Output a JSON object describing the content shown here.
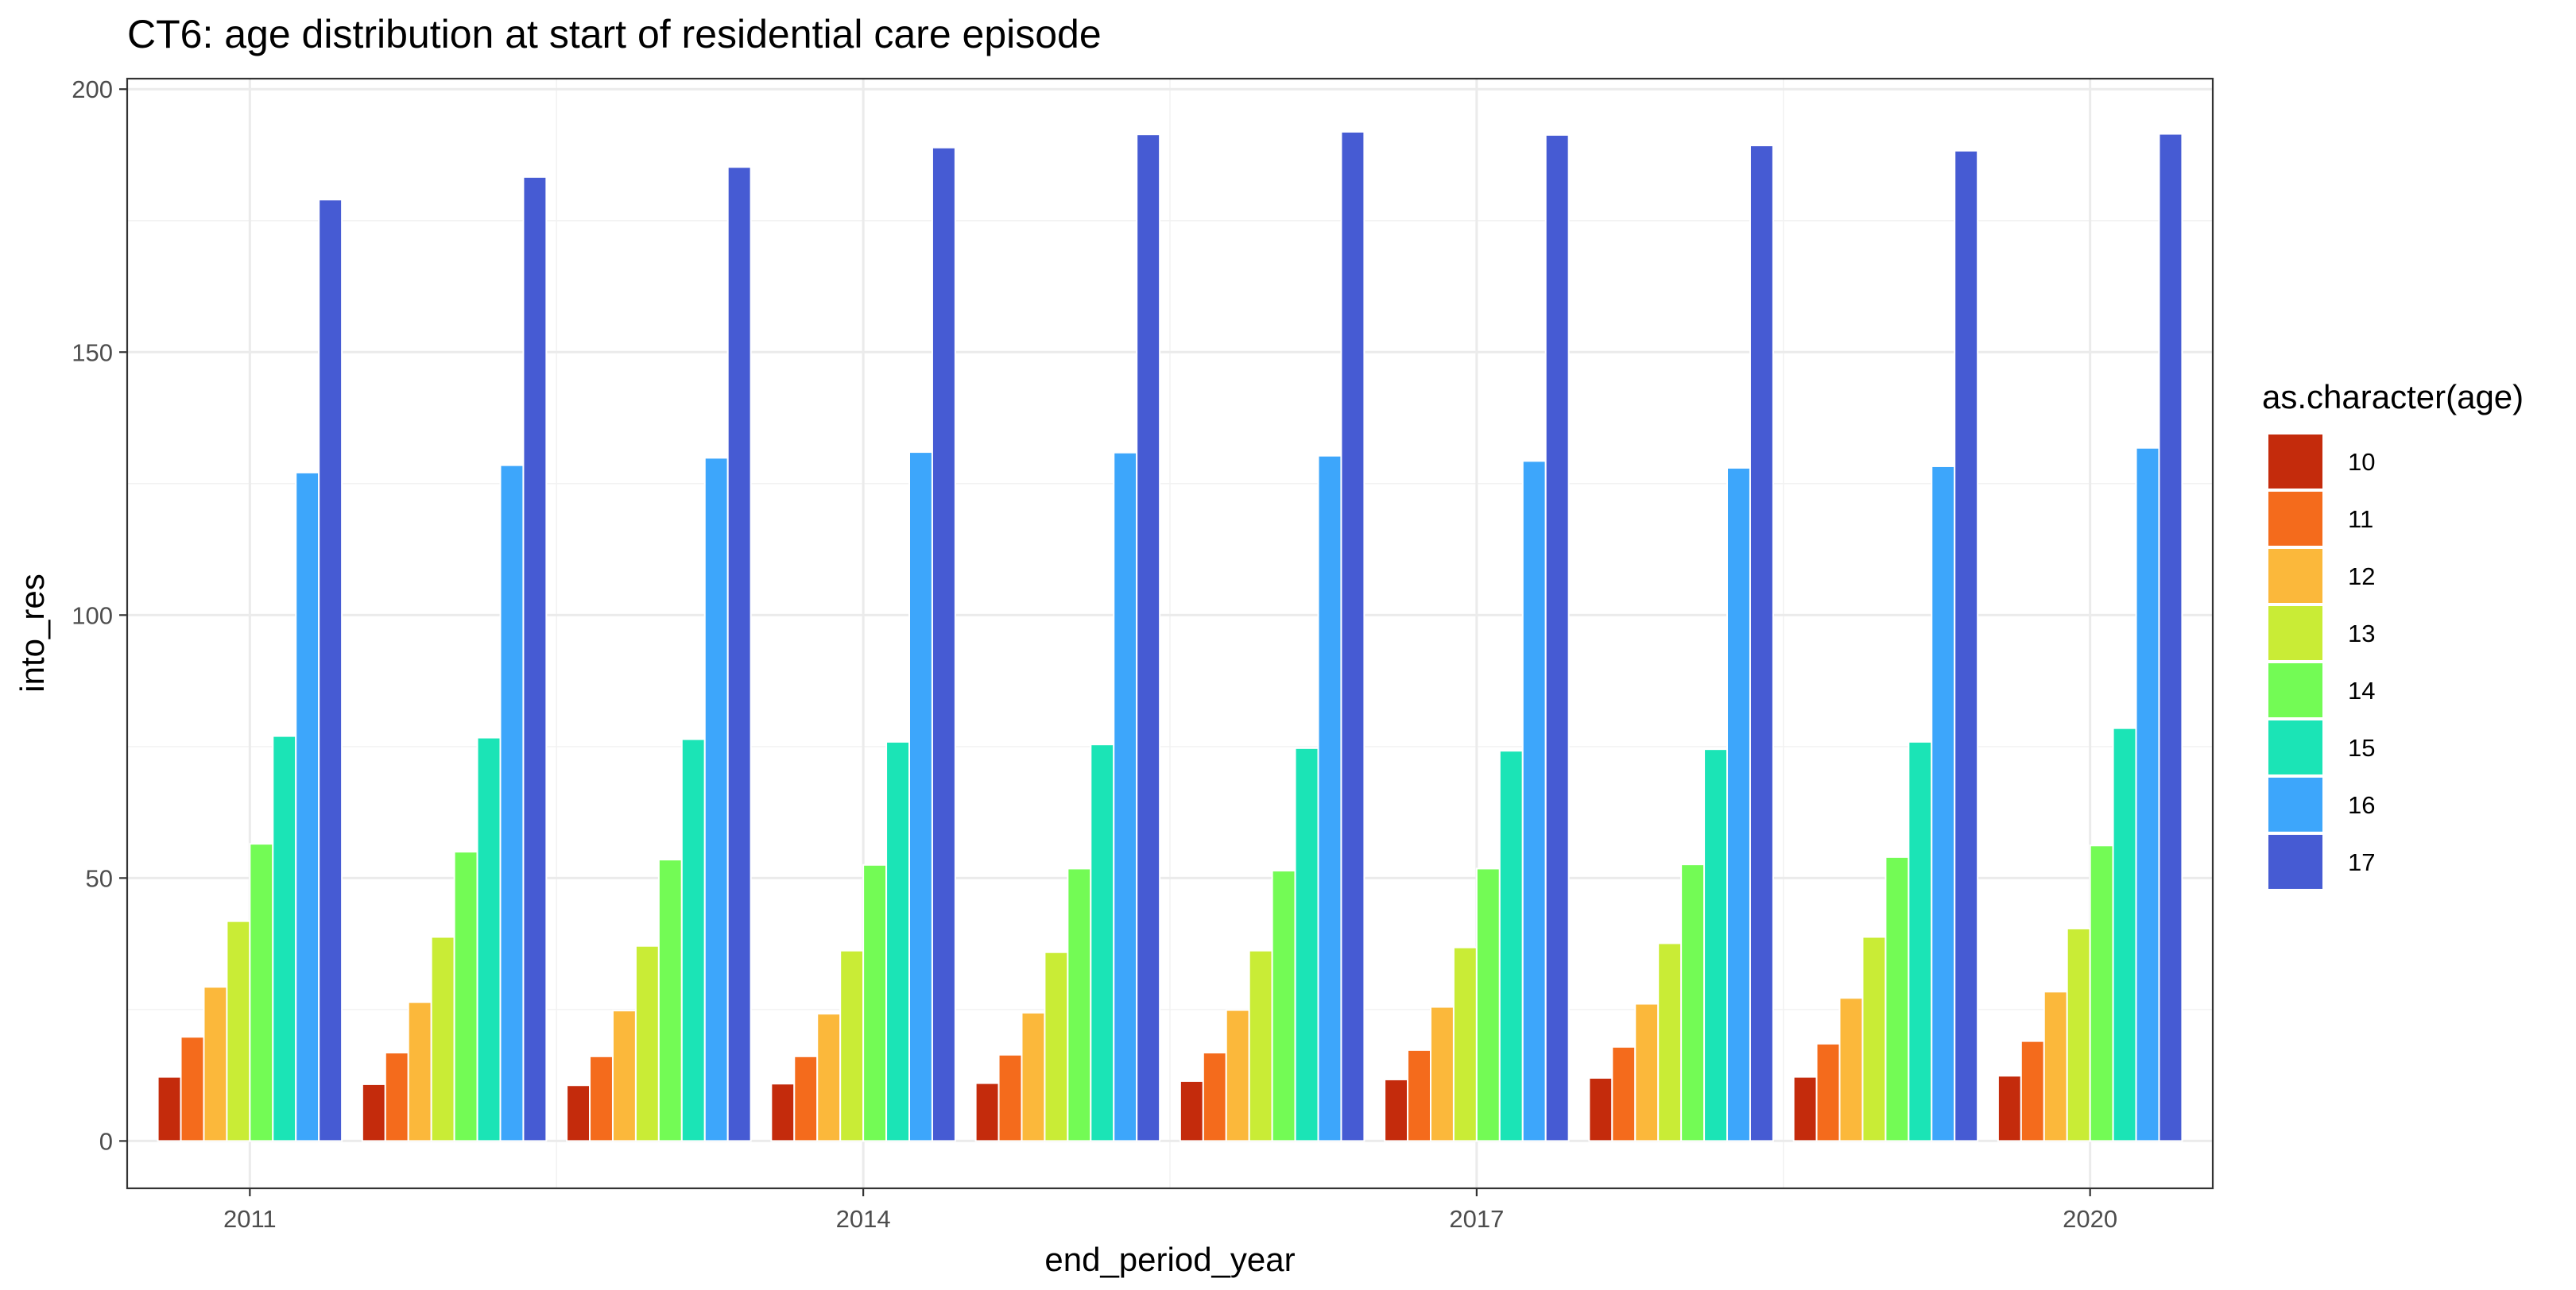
{
  "chart_data": {
    "type": "bar",
    "title": "CT6: age distribution at start of residential care episode",
    "xlabel": "end_period_year",
    "ylabel": "into_res",
    "categories": [
      2011,
      2012,
      2013,
      2014,
      2015,
      2016,
      2017,
      2018,
      2019,
      2020
    ],
    "x_ticks": [
      2011,
      2014,
      2017,
      2020
    ],
    "y_ticks": [
      0,
      50,
      100,
      150,
      200
    ],
    "ylim": [
      -9,
      202
    ],
    "grid": true,
    "legend": {
      "title": "as.character(age)",
      "position": "right"
    },
    "series": [
      {
        "name": "10",
        "color": "#c42b0c",
        "values": [
          12.2,
          10.8,
          10.6,
          10.9,
          11.0,
          11.4,
          11.7,
          12.0,
          12.2,
          12.4
        ]
      },
      {
        "name": "11",
        "color": "#f46b1c",
        "values": [
          19.8,
          16.8,
          16.1,
          16.1,
          16.4,
          16.8,
          17.3,
          17.9,
          18.5,
          19.0
        ]
      },
      {
        "name": "12",
        "color": "#fbb83b",
        "values": [
          29.3,
          26.4,
          24.8,
          24.2,
          24.4,
          24.9,
          25.5,
          26.1,
          27.2,
          28.4
        ]
      },
      {
        "name": "13",
        "color": "#c9ec36",
        "values": [
          41.8,
          38.8,
          37.1,
          36.2,
          35.9,
          36.2,
          36.8,
          37.6,
          38.8,
          40.4
        ]
      },
      {
        "name": "14",
        "color": "#73fb55",
        "values": [
          56.5,
          55.0,
          53.5,
          52.5,
          51.8,
          51.4,
          51.8,
          52.6,
          54.0,
          56.2
        ]
      },
      {
        "name": "15",
        "color": "#1be4b6",
        "values": [
          77.0,
          76.7,
          76.4,
          75.9,
          75.4,
          74.7,
          74.2,
          74.5,
          75.9,
          78.5
        ]
      },
      {
        "name": "16",
        "color": "#3da6fb",
        "values": [
          127.1,
          128.5,
          129.9,
          131.0,
          130.9,
          130.3,
          129.3,
          128.0,
          128.3,
          131.8
        ]
      },
      {
        "name": "17",
        "color": "#465bd3",
        "values": [
          179.0,
          183.3,
          185.2,
          188.9,
          191.4,
          191.9,
          191.3,
          189.3,
          188.3,
          191.5
        ]
      }
    ]
  }
}
